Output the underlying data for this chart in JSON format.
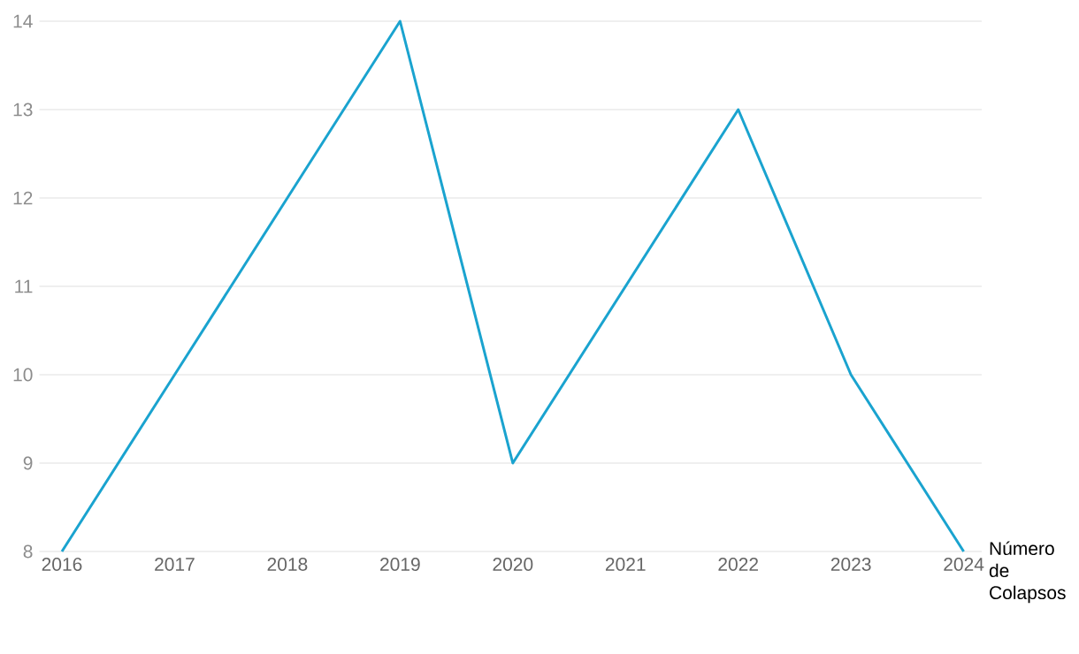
{
  "chart_data": {
    "type": "line",
    "categories": [
      "2016",
      "2017",
      "2018",
      "2019",
      "2020",
      "2021",
      "2022",
      "2023",
      "2024"
    ],
    "series": [
      {
        "name": "Número de Colapsos",
        "color": "#1aa3cf",
        "values": [
          8,
          10,
          12,
          14,
          9,
          11,
          13,
          10,
          8
        ]
      }
    ],
    "ylim": [
      8,
      14
    ],
    "yticks": [
      8,
      9,
      10,
      11,
      12,
      13,
      14
    ],
    "grid": "y",
    "marker": "none",
    "line_style": "solid",
    "legend": false
  }
}
